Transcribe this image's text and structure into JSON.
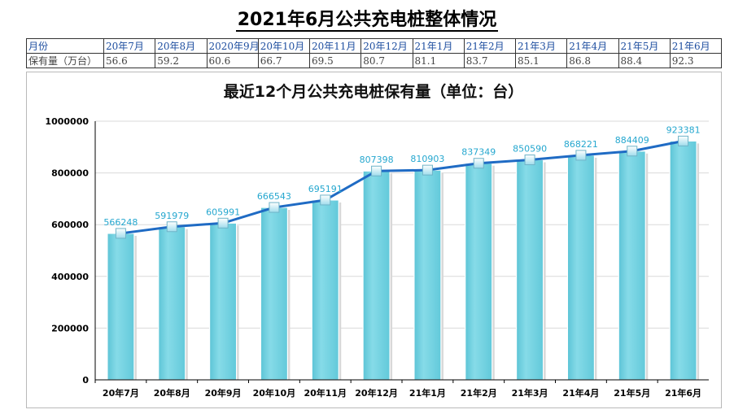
{
  "page": {
    "title": "2021年6月公共充电桩整体情况"
  },
  "summary_table": {
    "header_label": "月份",
    "row_label": "保有量（万台）",
    "months": [
      "20年7月",
      "20年8月",
      "2020年9月",
      "20年10月",
      "20年11月",
      "20年12月",
      "21年1月",
      "21年2月",
      "21年3月",
      "21年4月",
      "21年5月",
      "21年6月"
    ],
    "values": [
      "56.6",
      "59.2",
      "60.6",
      "66.7",
      "69.5",
      "80.7",
      "81.1",
      "83.7",
      "85.1",
      "86.8",
      "88.4",
      "92.3"
    ]
  },
  "colors": {
    "bar": "#7fd6e4",
    "bar_edge": "#5cc4d6",
    "line": "#1f6bc4",
    "marker": "#bfe9f3",
    "label": "#25a7cf"
  },
  "chart_data": {
    "type": "bar",
    "title": "最近12个月公共充电桩保有量（单位：台）",
    "categories": [
      "20年7月",
      "20年8月",
      "20年9月",
      "20年10月",
      "20年11月",
      "20年12月",
      "21年1月",
      "21年2月",
      "21年3月",
      "21年4月",
      "21年5月",
      "21年6月"
    ],
    "values": [
      566248,
      591979,
      605991,
      666543,
      695191,
      807398,
      810903,
      837349,
      850590,
      868221,
      884409,
      923381
    ],
    "overlay": "line-with-markers",
    "data_labels": true,
    "ylim": [
      0,
      1000000
    ],
    "yticks": [
      0,
      200000,
      400000,
      600000,
      800000,
      1000000
    ],
    "ytick_labels": [
      "0",
      "200000",
      "400000",
      "600000",
      "800000",
      "1000000"
    ],
    "grid": true,
    "legend": "none",
    "xlabel": "",
    "ylabel": ""
  }
}
